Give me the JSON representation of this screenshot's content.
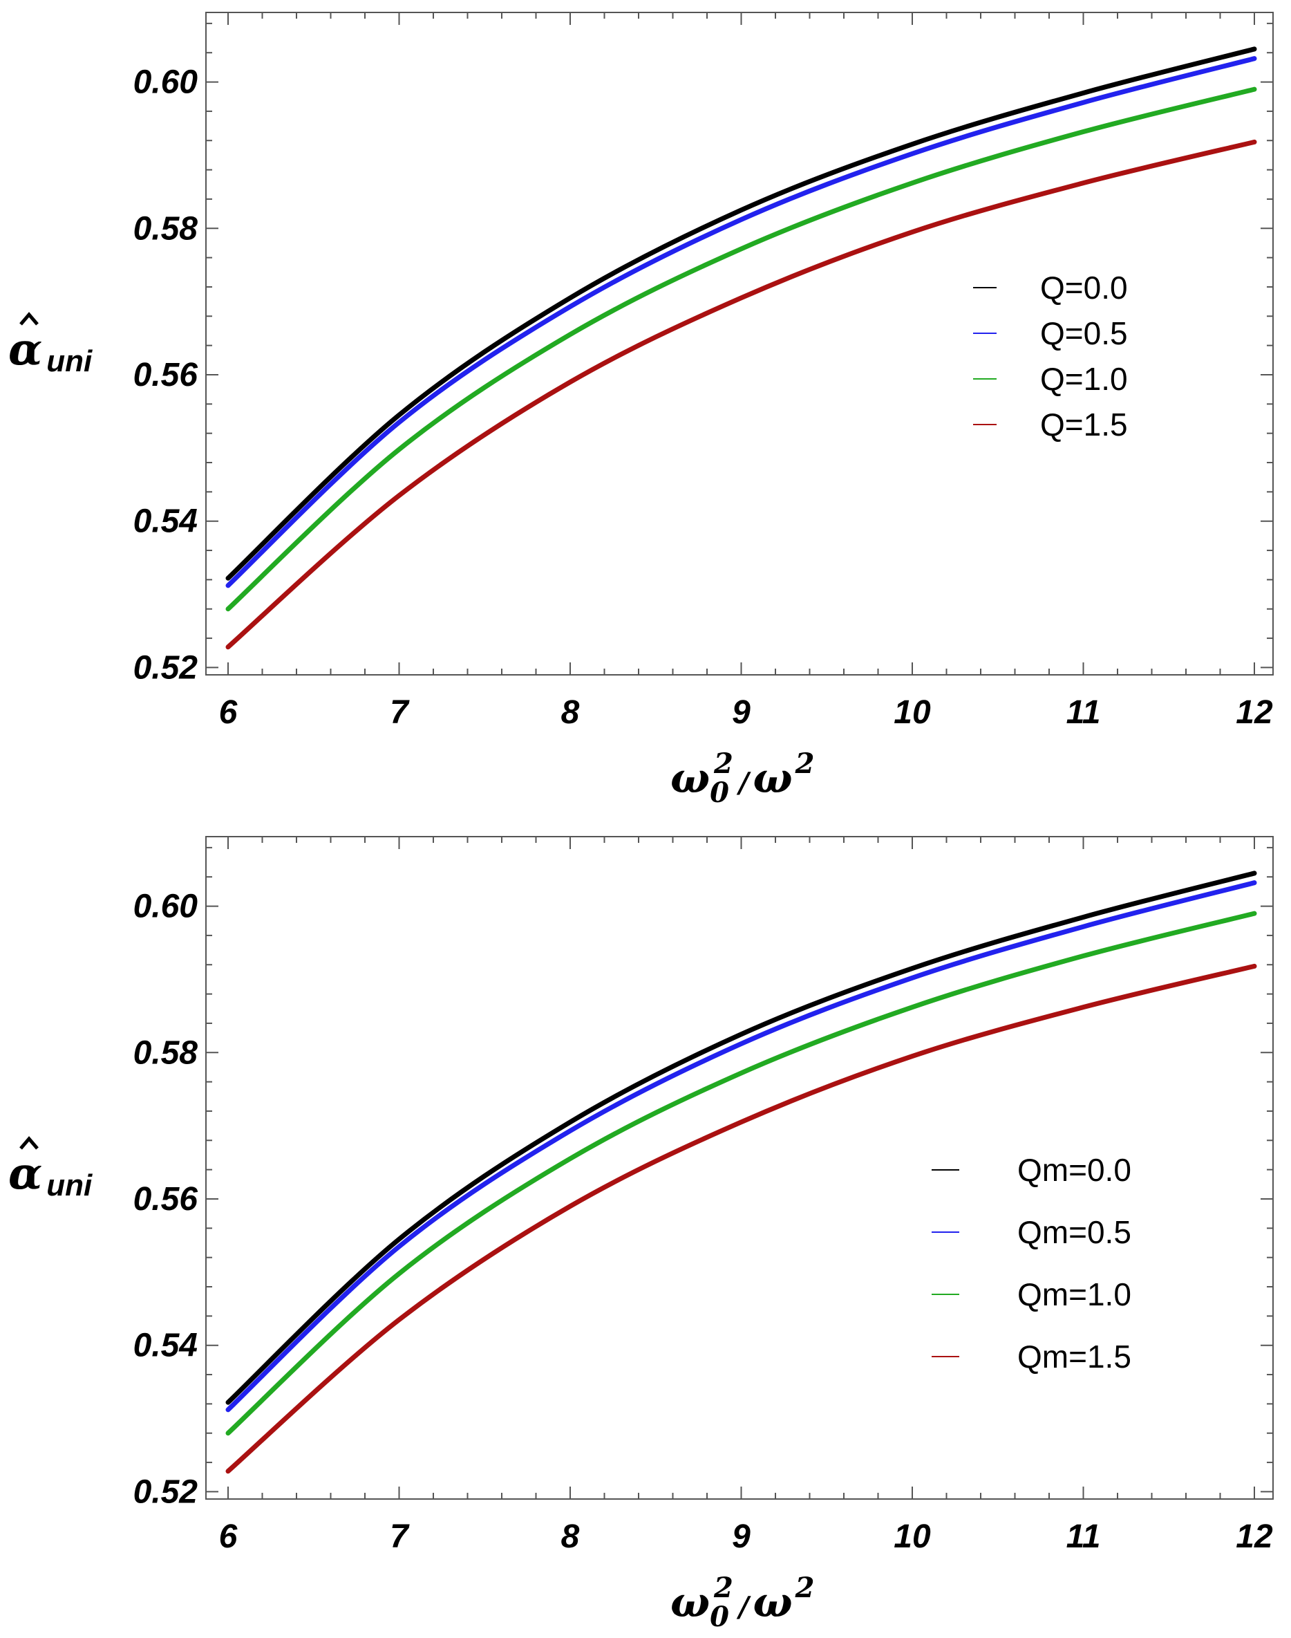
{
  "chart_data": [
    {
      "type": "line",
      "title": "",
      "xlabel": {
        "base": "ω",
        "sub": "0",
        "sup": "2",
        "sep": "/",
        "base2": "ω",
        "sup2": "2"
      },
      "ylabel": {
        "base": "α",
        "sub": "uni"
      },
      "xlim": [
        6,
        12
      ],
      "ylim": [
        0.519,
        0.6095
      ],
      "xticks": [
        6,
        7,
        8,
        9,
        10,
        11,
        12
      ],
      "yticks": [
        0.52,
        0.54,
        0.56,
        0.58,
        0.6
      ],
      "ytick_labels": [
        "0.52",
        "0.54",
        "0.56",
        "0.58",
        "0.60"
      ],
      "legend_position": "center-right",
      "series": [
        {
          "name": "Q=0.0",
          "color": "#000000",
          "x": [
            6,
            7,
            8,
            9,
            10,
            11,
            12
          ],
          "y": [
            0.5322,
            0.5545,
            0.5705,
            0.5825,
            0.5915,
            0.5985,
            0.6045
          ]
        },
        {
          "name": "Q=0.5",
          "color": "#2222ee",
          "x": [
            6,
            7,
            8,
            9,
            10,
            11,
            12
          ],
          "y": [
            0.5312,
            0.5535,
            0.5693,
            0.5812,
            0.5902,
            0.5972,
            0.6032
          ]
        },
        {
          "name": "Q=1.0",
          "color": "#22aa22",
          "x": [
            6,
            7,
            8,
            9,
            10,
            11,
            12
          ],
          "y": [
            0.528,
            0.5498,
            0.5655,
            0.5772,
            0.5862,
            0.5932,
            0.599
          ]
        },
        {
          "name": "Q=1.5",
          "color": "#aa1111",
          "x": [
            6,
            7,
            8,
            9,
            10,
            11,
            12
          ],
          "y": [
            0.5228,
            0.5435,
            0.559,
            0.5705,
            0.5795,
            0.5862,
            0.5918
          ]
        }
      ]
    },
    {
      "type": "line",
      "title": "",
      "xlabel": {
        "base": "ω",
        "sub": "0",
        "sup": "2",
        "sep": "/",
        "base2": "ω",
        "sup2": "2"
      },
      "ylabel": {
        "base": "α",
        "sub": "uni"
      },
      "xlim": [
        6,
        12
      ],
      "ylim": [
        0.519,
        0.6095
      ],
      "xticks": [
        6,
        7,
        8,
        9,
        10,
        11,
        12
      ],
      "yticks": [
        0.52,
        0.54,
        0.56,
        0.58,
        0.6
      ],
      "ytick_labels": [
        "0.52",
        "0.54",
        "0.56",
        "0.58",
        "0.60"
      ],
      "legend_position": "lower-right",
      "series": [
        {
          "name": "Qm=0.0",
          "color": "#000000",
          "x": [
            6,
            7,
            8,
            9,
            10,
            11,
            12
          ],
          "y": [
            0.5322,
            0.5545,
            0.5705,
            0.5825,
            0.5915,
            0.5985,
            0.6045
          ]
        },
        {
          "name": "Qm=0.5",
          "color": "#2222ee",
          "x": [
            6,
            7,
            8,
            9,
            10,
            11,
            12
          ],
          "y": [
            0.5312,
            0.5535,
            0.5693,
            0.5812,
            0.5902,
            0.5972,
            0.6032
          ]
        },
        {
          "name": "Qm=1.0",
          "color": "#22aa22",
          "x": [
            6,
            7,
            8,
            9,
            10,
            11,
            12
          ],
          "y": [
            0.528,
            0.5498,
            0.5655,
            0.5772,
            0.5862,
            0.5932,
            0.599
          ]
        },
        {
          "name": "Qm=1.5",
          "color": "#aa1111",
          "x": [
            6,
            7,
            8,
            9,
            10,
            11,
            12
          ],
          "y": [
            0.5228,
            0.5435,
            0.559,
            0.5705,
            0.5795,
            0.5862,
            0.5918
          ]
        }
      ]
    }
  ]
}
